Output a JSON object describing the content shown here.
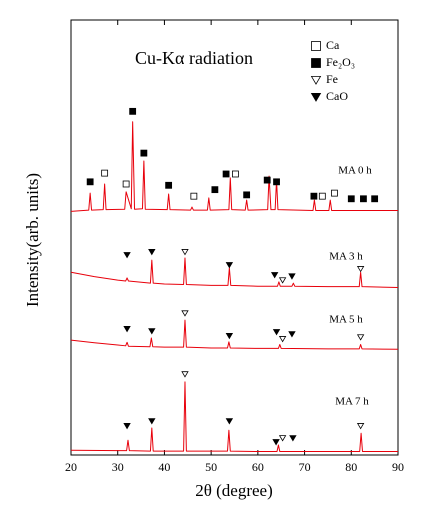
{
  "chart_data": {
    "type": "line",
    "title": "Cu-Kα radiation",
    "x_label": "2θ (degree)",
    "y_label": "Intensity(arb. units)",
    "xlim": [
      20,
      90
    ],
    "xticks": [
      20,
      30,
      40,
      50,
      60,
      70,
      80,
      90
    ],
    "ylim": [
      0,
      100
    ],
    "series": [
      {
        "name": "MA 0 h",
        "color": "#e8000b",
        "x": [
          20,
          23.8,
          24.1,
          24.4,
          26.9,
          27.2,
          27.5,
          31.5,
          31.8,
          32.9,
          33.2,
          33.6,
          35.3,
          35.6,
          35.9,
          40.6,
          40.9,
          41.2,
          45.6,
          45.9,
          46.2,
          49.2,
          49.5,
          49.8,
          53.8,
          54.1,
          54.4,
          57.3,
          57.6,
          57.9,
          62.1,
          62.4,
          62.8,
          63.7,
          64,
          64.3,
          71.8,
          72.1,
          72.4,
          75.2,
          75.5,
          75.8,
          90
        ],
        "values": [
          56,
          56.3,
          60.2,
          56.3,
          56.4,
          62.3,
          56.4,
          56.5,
          60.5,
          56.6,
          76.6,
          56.5,
          56.6,
          67.6,
          56.5,
          56.4,
          60,
          56.4,
          56.3,
          57,
          56.3,
          56.3,
          59.1,
          56.3,
          56.4,
          63.7,
          56.4,
          56.3,
          58.6,
          56.3,
          56.4,
          64.1,
          56.4,
          56.4,
          63.2,
          56.4,
          56.2,
          58.6,
          56.2,
          56.2,
          58.6,
          56.2,
          56.2
        ]
      },
      {
        "name": "MA 3 h",
        "color": "#e8000b",
        "x": [
          20,
          25,
          30,
          31.7,
          32,
          32.3,
          37,
          37.3,
          37.6,
          40,
          44.1,
          44.4,
          44.7,
          50,
          53.6,
          53.9,
          54.2,
          60,
          64.2,
          64.5,
          64.8,
          67.3,
          67.6,
          67.9,
          75,
          81.7,
          82,
          82.3,
          90
        ],
        "values": [
          42,
          41,
          40.2,
          40,
          40.7,
          40,
          39.5,
          44.8,
          39.5,
          39.3,
          39.2,
          45.3,
          39.2,
          39,
          39,
          43,
          39,
          38.8,
          38.8,
          39.8,
          38.8,
          38.8,
          39.5,
          38.8,
          38.7,
          38.7,
          42,
          38.7,
          38.5
        ]
      },
      {
        "name": "MA 5 h",
        "color": "#e8000b",
        "x": [
          20,
          25,
          30,
          31.7,
          32,
          32.3,
          36.9,
          37.2,
          37.5,
          40,
          44.1,
          44.4,
          44.7,
          50,
          53.5,
          53.8,
          54.1,
          60,
          64.4,
          64.7,
          65,
          75,
          81.7,
          82,
          82.3,
          90
        ],
        "values": [
          26.4,
          25.8,
          25.3,
          25.1,
          25.9,
          25,
          24.9,
          26.9,
          24.9,
          24.8,
          24.8,
          31,
          24.8,
          24.6,
          24.6,
          26,
          24.6,
          24.5,
          24.5,
          25.4,
          24.5,
          24.4,
          24.4,
          25.4,
          24.4,
          24.3
        ]
      },
      {
        "name": "MA 7 h",
        "color": "#e8000b",
        "x": [
          20,
          30,
          31.9,
          32.2,
          32.5,
          37,
          37.3,
          37.6,
          40,
          44.1,
          44.4,
          44.7,
          50,
          53.5,
          53.8,
          54.1,
          60,
          64.1,
          64.4,
          64.7,
          75,
          81.8,
          82.1,
          82.4,
          90
        ],
        "values": [
          1.1,
          1,
          1,
          3.4,
          1,
          0.9,
          6.2,
          0.9,
          0.9,
          0.9,
          16.8,
          0.9,
          0.9,
          0.9,
          5.7,
          0.9,
          0.8,
          0.8,
          2.3,
          0.8,
          0.8,
          0.8,
          5,
          0.8,
          0.8
        ]
      }
    ],
    "markers": [
      {
        "name": "Ca",
        "shape": "square-open",
        "points": [
          [
            27.2,
            64.8
          ],
          [
            31.8,
            62.3
          ],
          [
            46.3,
            59.5
          ],
          [
            55.2,
            64.6
          ],
          [
            73.8,
            59.5
          ],
          [
            76.4,
            60.2
          ]
        ]
      },
      {
        "name": "Fe₂O₃",
        "shape": "square-filled",
        "points": [
          [
            24.1,
            62.8
          ],
          [
            33.2,
            79
          ],
          [
            35.6,
            69.4
          ],
          [
            40.9,
            62
          ],
          [
            50.8,
            61
          ],
          [
            53.2,
            64.6
          ],
          [
            57.6,
            59.8
          ],
          [
            62,
            63.2
          ],
          [
            64,
            62.8
          ],
          [
            72,
            59.5
          ],
          [
            80,
            58.9
          ],
          [
            82.6,
            58.9
          ],
          [
            85,
            58.9
          ]
        ]
      },
      {
        "name": "Fe",
        "shape": "triangle-open",
        "points": [
          [
            44.4,
            46.7
          ],
          [
            65.3,
            40.2
          ],
          [
            82,
            42.8
          ],
          [
            44.4,
            32.6
          ],
          [
            65.3,
            26.7
          ],
          [
            82,
            27.1
          ],
          [
            44.4,
            18.6
          ],
          [
            65.3,
            3.9
          ],
          [
            82,
            6.7
          ]
        ]
      },
      {
        "name": "CaO",
        "shape": "triangle-filled",
        "points": [
          [
            32,
            46
          ],
          [
            37.3,
            46.7
          ],
          [
            53.9,
            43.7
          ],
          [
            63.6,
            41.4
          ],
          [
            67.3,
            41.1
          ],
          [
            32,
            29
          ],
          [
            37.3,
            28.5
          ],
          [
            53.9,
            27.4
          ],
          [
            64,
            28.3
          ],
          [
            67.3,
            27.8
          ],
          [
            32,
            6.7
          ],
          [
            37.3,
            7.8
          ],
          [
            53.9,
            7.8
          ],
          [
            63.9,
            3
          ],
          [
            67.5,
            3.9
          ]
        ]
      }
    ]
  }
}
